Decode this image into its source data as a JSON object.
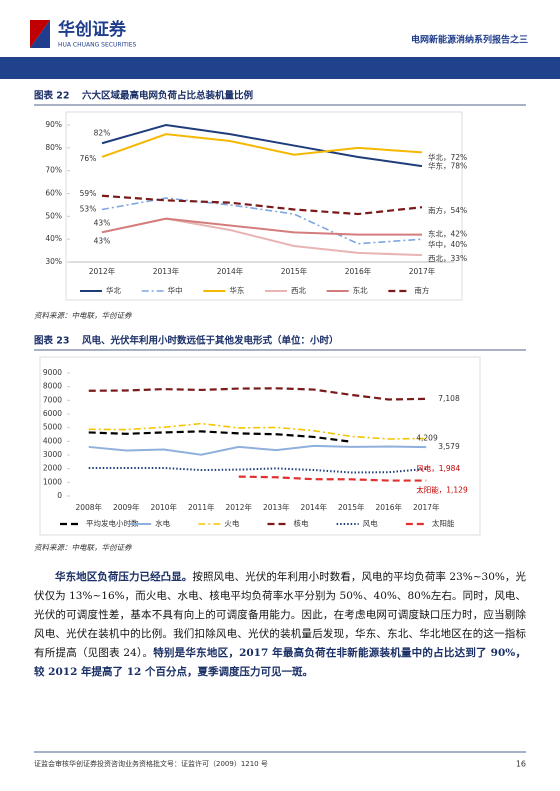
{
  "header": {
    "logo": "华创证券",
    "logo_en": "HUA CHUANG SECURITIES",
    "report": "电网新能源消纳系列报告之三"
  },
  "figures": [
    {
      "label": "图表 22",
      "title": "六大区域最高电网负荷占比总装机量比例",
      "source": "资料来源：中电联，华创证券"
    },
    {
      "label": "图表 23",
      "title": "风电、光伏年利用小时数远低于其他发电形式（单位：小时）",
      "source": "资料来源：中电联，华创证券"
    }
  ],
  "chart_data": [
    {
      "type": "line",
      "categories": [
        "2012年",
        "2013年",
        "2014年",
        "2015年",
        "2016年",
        "2017年"
      ],
      "ylim": [
        30,
        90
      ],
      "yticks": [
        {
          "value": 30,
          "label": "30%"
        },
        {
          "value": 40,
          "label": "40%"
        },
        {
          "value": 50,
          "label": "50%"
        },
        {
          "value": 60,
          "label": "60%"
        },
        {
          "value": 70,
          "label": "70%"
        },
        {
          "value": 80,
          "label": "80%"
        },
        {
          "value": 90,
          "label": "90%"
        }
      ],
      "grid": false,
      "series": [
        {
          "name": "华北",
          "color": "#1f3d7a",
          "line_style": "solid",
          "values": [
            82,
            90,
            86,
            81,
            76,
            72
          ],
          "value_labels": [
            "82%",
            null,
            null,
            null,
            null,
            "华北，72%"
          ]
        },
        {
          "name": "华中",
          "color": "#7ea6e0",
          "line_style": "dashdot",
          "values": [
            53,
            58,
            55,
            51,
            38,
            40
          ],
          "value_labels": [
            "53%",
            null,
            null,
            null,
            null,
            "华中，40%"
          ]
        },
        {
          "name": "华东",
          "color": "#f5b800",
          "line_style": "solid",
          "values": [
            76,
            86,
            83,
            77,
            80,
            78
          ],
          "value_labels": [
            "76%",
            null,
            null,
            null,
            null,
            "华东，78%"
          ]
        },
        {
          "name": "西北",
          "color": "#e8b4b4",
          "line_style": "solid",
          "values": [
            43,
            49,
            44,
            37,
            34,
            33
          ],
          "value_labels": [
            "43%",
            null,
            null,
            null,
            null,
            "西北，33%"
          ]
        },
        {
          "name": "东北",
          "color": "#d47c7c",
          "line_style": "solid",
          "values": [
            43,
            49,
            46,
            43,
            42,
            42
          ],
          "value_labels": [
            "43%",
            null,
            null,
            null,
            null,
            "东北，42%"
          ]
        },
        {
          "name": "南方",
          "color": "#7b1a1a",
          "line_style": "dash",
          "values": [
            59,
            57,
            56,
            53,
            51,
            54
          ],
          "value_labels": [
            "59%",
            null,
            null,
            null,
            null,
            "南方，54%"
          ]
        }
      ]
    },
    {
      "type": "line",
      "categories": [
        "2008年",
        "2009年",
        "2010年",
        "2011年",
        "2012年",
        "2013年",
        "2014年",
        "2015年",
        "2016年",
        "2017年"
      ],
      "ylim": [
        0,
        9000
      ],
      "yticks": [
        0,
        1000,
        2000,
        3000,
        4000,
        5000,
        6000,
        7000,
        8000,
        9000
      ],
      "grid": false,
      "series": [
        {
          "name": "平均发电小时数",
          "color": "#000000",
          "line_style": "dash",
          "values": [
            4650,
            4550,
            4650,
            4730,
            4580,
            4520,
            4320,
            3970,
            null,
            null
          ]
        },
        {
          "name": "水电",
          "color": "#8fb0dd",
          "line_style": "solid",
          "values": [
            3590,
            3330,
            3400,
            3020,
            3590,
            3360,
            3670,
            3590,
            3620,
            3579
          ],
          "value_labels": [
            null,
            null,
            null,
            null,
            null,
            null,
            null,
            null,
            null,
            "3,579"
          ]
        },
        {
          "name": "火电",
          "color": "#f5c400",
          "line_style": "dashdot",
          "values": [
            4880,
            4860,
            5030,
            5300,
            4980,
            5020,
            4780,
            4360,
            4170,
            4209
          ],
          "value_labels": [
            null,
            null,
            null,
            null,
            null,
            null,
            null,
            null,
            null,
            "4,209"
          ]
        },
        {
          "name": "核电",
          "color": "#7b1a1a",
          "line_style": "dash",
          "values": [
            7700,
            7720,
            7820,
            7760,
            7860,
            7880,
            7790,
            7400,
            7060,
            7108
          ],
          "value_labels": [
            null,
            null,
            null,
            null,
            null,
            null,
            null,
            null,
            null,
            "7,108"
          ]
        },
        {
          "name": "风电",
          "color": "#1f3d7a",
          "line_style": "dot",
          "values": [
            2050,
            2050,
            2050,
            1900,
            1930,
            2020,
            1900,
            1720,
            1740,
            1984
          ],
          "value_labels": [
            null,
            null,
            null,
            null,
            null,
            null,
            null,
            null,
            null,
            "风电，1,984"
          ]
        },
        {
          "name": "太阳能",
          "color": "#e03030",
          "line_style": "dash",
          "values": [
            null,
            null,
            null,
            null,
            1420,
            1370,
            1230,
            1220,
            1130,
            1129
          ],
          "value_labels": [
            null,
            null,
            null,
            null,
            null,
            null,
            null,
            null,
            null,
            "太阳能，1,129"
          ]
        }
      ]
    }
  ],
  "body": {
    "paragraph": [
      {
        "text": "华东地区负荷压力已经凸显。",
        "bold": true
      },
      {
        "text": "按照风电、光伏的年利用小时数看，风电的平均负荷率 23%~30%，光伏仅为 13%~16%，而火电、水电、核电平均负荷率水平分别为 50%、40%、80%左右。同时，风电、光伏的可调度性差，基本不具有向上的可调度备用能力。因此，在考虑电网可调度缺口压力时，应当剔除风电、光伏在装机中的比例。我们扣除风电、光伏的装机量后发现，华东、东北、华北地区在的这一指标有所提高（见图表 24）。",
        "bold": false
      },
      {
        "text": "特别是华东地区，2017 年最高负荷在非新能源装机量中的占比达到了 90%，较 2012 年提高了 12 个百分点，夏季调度压力可见一斑。",
        "bold": true
      }
    ]
  },
  "footer": {
    "license": "证监会审核华创证券投资咨询业务资格批文号：证监许可（2009）1210 号",
    "page": "16"
  }
}
